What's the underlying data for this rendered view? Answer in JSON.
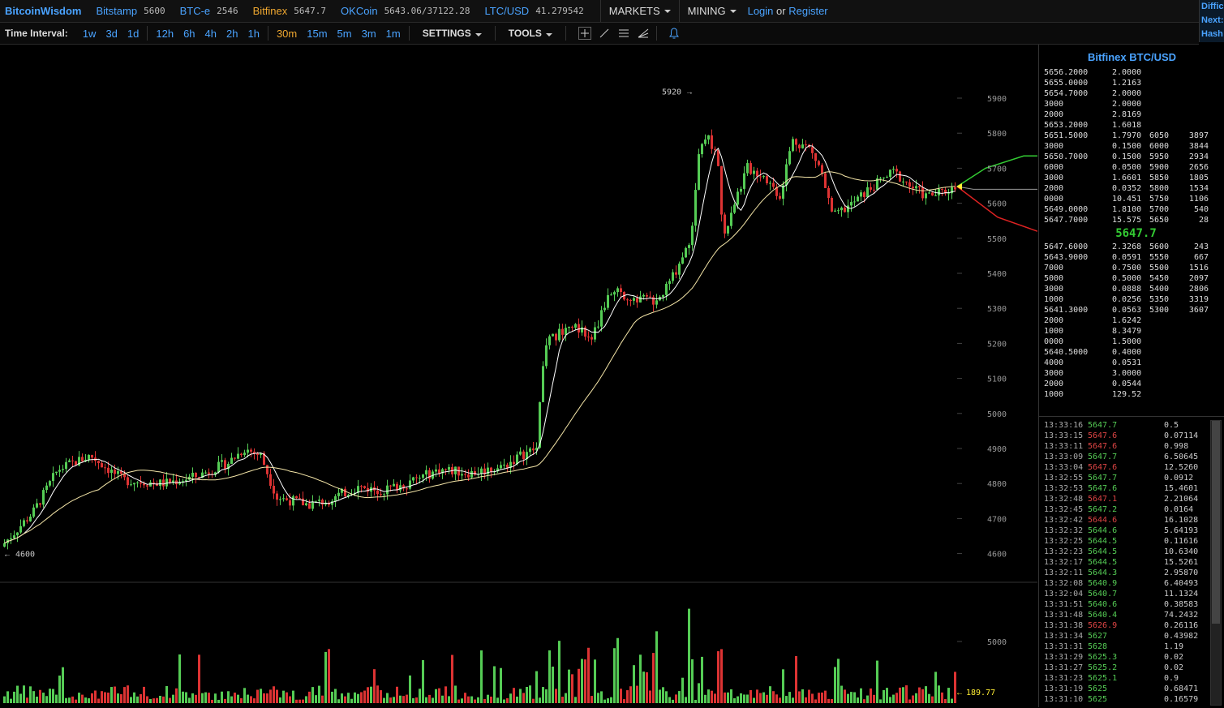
{
  "brand": "BitcoinWisdom",
  "markets": [
    {
      "name": "Bitstamp",
      "price": "5600",
      "active": false
    },
    {
      "name": "BTC-e",
      "price": "2546",
      "active": false
    },
    {
      "name": "Bitfinex",
      "price": "5647.7",
      "active": true
    },
    {
      "name": "OKCoin",
      "price": "5643.06/37122.28",
      "active": false
    },
    {
      "name": "LTC/USD",
      "price": "41.279542",
      "active": false
    }
  ],
  "menus": {
    "markets": "MARKETS",
    "mining": "MINING"
  },
  "auth": {
    "login": "Login",
    "or": "or",
    "register": "Register"
  },
  "side_header": [
    "Diffic",
    "Next:",
    "Hash"
  ],
  "toolbar": {
    "label": "Time Interval:",
    "intervals": [
      "1w",
      "3d",
      "1d",
      "12h",
      "6h",
      "4h",
      "2h",
      "1h",
      "30m",
      "15m",
      "5m",
      "3m",
      "1m"
    ],
    "selected": "30m",
    "settings": "SETTINGS",
    "tools": "TOOLS"
  },
  "chart": {
    "price_ticks": [
      "5900",
      "5800",
      "5700",
      "5600",
      "5500",
      "5400",
      "5300",
      "5200",
      "5100",
      "5000",
      "4900",
      "4800",
      "4700",
      "4600"
    ],
    "high_label": "5920",
    "low_label": "4600",
    "volume_tick": "5000",
    "volume_current": "189.77",
    "colors": {
      "up": "#55cc55",
      "down": "#dd3333",
      "ma_fast": "#ffffff",
      "ma_slow": "#f5e6a8"
    }
  },
  "orderbook": {
    "title": "Bitfinex BTC/USD",
    "asks": [
      {
        "price": "5656.2000",
        "amount": "2.0000",
        "depth_price": "",
        "depth_amt": ""
      },
      {
        "price": "5655.0000",
        "amount": "1.2163",
        "depth_price": "",
        "depth_amt": ""
      },
      {
        "price": "5654.7000",
        "amount": "2.0000",
        "depth_price": "",
        "depth_amt": ""
      },
      {
        "price": "3000",
        "amount": "2.0000",
        "depth_price": "",
        "depth_amt": ""
      },
      {
        "price": "2000",
        "amount": "2.8169",
        "depth_price": "",
        "depth_amt": ""
      },
      {
        "price": "5653.2000",
        "amount": "1.6018",
        "depth_price": "",
        "depth_amt": ""
      },
      {
        "price": "5651.5000",
        "amount": "1.7970",
        "depth_price": "6050",
        "depth_amt": "3897"
      },
      {
        "price": "3000",
        "amount": "0.1500",
        "depth_price": "6000",
        "depth_amt": "3844"
      },
      {
        "price": "5650.7000",
        "amount": "0.1500",
        "depth_price": "5950",
        "depth_amt": "2934"
      },
      {
        "price": "6000",
        "amount": "0.0500",
        "depth_price": "5900",
        "depth_amt": "2656"
      },
      {
        "price": "3000",
        "amount": "1.6601",
        "depth_price": "5850",
        "depth_amt": "1805"
      },
      {
        "price": "2000",
        "amount": "0.0352",
        "depth_price": "5800",
        "depth_amt": "1534"
      },
      {
        "price": "0000",
        "amount": "10.451",
        "depth_price": "5750",
        "depth_amt": "1106"
      },
      {
        "price": "5649.0000",
        "amount": "1.8100",
        "depth_price": "5700",
        "depth_amt": "540"
      },
      {
        "price": "5647.7000",
        "amount": "15.575",
        "depth_price": "5650",
        "depth_amt": "28"
      }
    ],
    "last_price": "5647.7",
    "bids": [
      {
        "price": "5647.6000",
        "amount": "2.3268",
        "depth_price": "5600",
        "depth_amt": "243"
      },
      {
        "price": "5643.9000",
        "amount": "0.0591",
        "depth_price": "5550",
        "depth_amt": "667"
      },
      {
        "price": "7000",
        "amount": "0.7500",
        "depth_price": "5500",
        "depth_amt": "1516"
      },
      {
        "price": "5000",
        "amount": "0.5000",
        "depth_price": "5450",
        "depth_amt": "2097"
      },
      {
        "price": "3000",
        "amount": "0.0888",
        "depth_price": "5400",
        "depth_amt": "2806"
      },
      {
        "price": "1000",
        "amount": "0.0256",
        "depth_price": "5350",
        "depth_amt": "3319"
      },
      {
        "price": "5641.3000",
        "amount": "0.0563",
        "depth_price": "5300",
        "depth_amt": "3607"
      },
      {
        "price": "2000",
        "amount": "1.6242",
        "depth_price": "",
        "depth_amt": ""
      },
      {
        "price": "1000",
        "amount": "8.3479",
        "depth_price": "",
        "depth_amt": ""
      },
      {
        "price": "0000",
        "amount": "1.5000",
        "depth_price": "",
        "depth_amt": ""
      },
      {
        "price": "5640.5000",
        "amount": "0.4000",
        "depth_price": "",
        "depth_amt": ""
      },
      {
        "price": "4000",
        "amount": "0.0531",
        "depth_price": "",
        "depth_amt": ""
      },
      {
        "price": "3000",
        "amount": "3.0000",
        "depth_price": "",
        "depth_amt": ""
      },
      {
        "price": "2000",
        "amount": "0.0544",
        "depth_price": "",
        "depth_amt": ""
      },
      {
        "price": "1000",
        "amount": "129.52",
        "depth_price": "",
        "depth_amt": ""
      }
    ]
  },
  "trades": [
    {
      "time": "13:33:16",
      "price": "5647.7",
      "side": "up",
      "amount": "0.5"
    },
    {
      "time": "13:33:15",
      "price": "5647.6",
      "side": "down",
      "amount": "0.07114"
    },
    {
      "time": "13:33:11",
      "price": "5647.6",
      "side": "down",
      "amount": "0.998"
    },
    {
      "time": "13:33:09",
      "price": "5647.7",
      "side": "up",
      "amount": "6.50645"
    },
    {
      "time": "13:33:04",
      "price": "5647.6",
      "side": "down",
      "amount": "12.5260"
    },
    {
      "time": "13:32:55",
      "price": "5647.7",
      "side": "up",
      "amount": "0.0912"
    },
    {
      "time": "13:32:53",
      "price": "5647.6",
      "side": "up",
      "amount": "15.4601"
    },
    {
      "time": "13:32:48",
      "price": "5647.1",
      "side": "down",
      "amount": "2.21064"
    },
    {
      "time": "13:32:45",
      "price": "5647.2",
      "side": "up",
      "amount": "0.0164"
    },
    {
      "time": "13:32:42",
      "price": "5644.6",
      "side": "down",
      "amount": "16.1028"
    },
    {
      "time": "13:32:32",
      "price": "5644.6",
      "side": "up",
      "amount": "5.64193"
    },
    {
      "time": "13:32:25",
      "price": "5644.5",
      "side": "up",
      "amount": "0.11616"
    },
    {
      "time": "13:32:23",
      "price": "5644.5",
      "side": "up",
      "amount": "10.6340"
    },
    {
      "time": "13:32:17",
      "price": "5644.5",
      "side": "up",
      "amount": "15.5261"
    },
    {
      "time": "13:32:11",
      "price": "5644.3",
      "side": "up",
      "amount": "2.95870"
    },
    {
      "time": "13:32:08",
      "price": "5640.9",
      "side": "up",
      "amount": "6.40493"
    },
    {
      "time": "13:32:04",
      "price": "5640.7",
      "side": "up",
      "amount": "11.1324"
    },
    {
      "time": "13:31:51",
      "price": "5640.6",
      "side": "up",
      "amount": "0.38583"
    },
    {
      "time": "13:31:48",
      "price": "5640.4",
      "side": "up",
      "amount": "74.2432"
    },
    {
      "time": "13:31:38",
      "price": "5626.9",
      "side": "down",
      "amount": "0.26116"
    },
    {
      "time": "13:31:34",
      "price": "5627",
      "side": "up",
      "amount": "0.43982"
    },
    {
      "time": "13:31:31",
      "price": "5628",
      "side": "up",
      "amount": "1.19"
    },
    {
      "time": "13:31:29",
      "price": "5625.3",
      "side": "up",
      "amount": "0.02"
    },
    {
      "time": "13:31:27",
      "price": "5625.2",
      "side": "up",
      "amount": "0.02"
    },
    {
      "time": "13:31:23",
      "price": "5625.1",
      "side": "up",
      "amount": "0.9"
    },
    {
      "time": "13:31:19",
      "price": "5625",
      "side": "up",
      "amount": "0.68471"
    },
    {
      "time": "13:31:10",
      "price": "5625",
      "side": "up",
      "amount": "0.16579"
    }
  ]
}
